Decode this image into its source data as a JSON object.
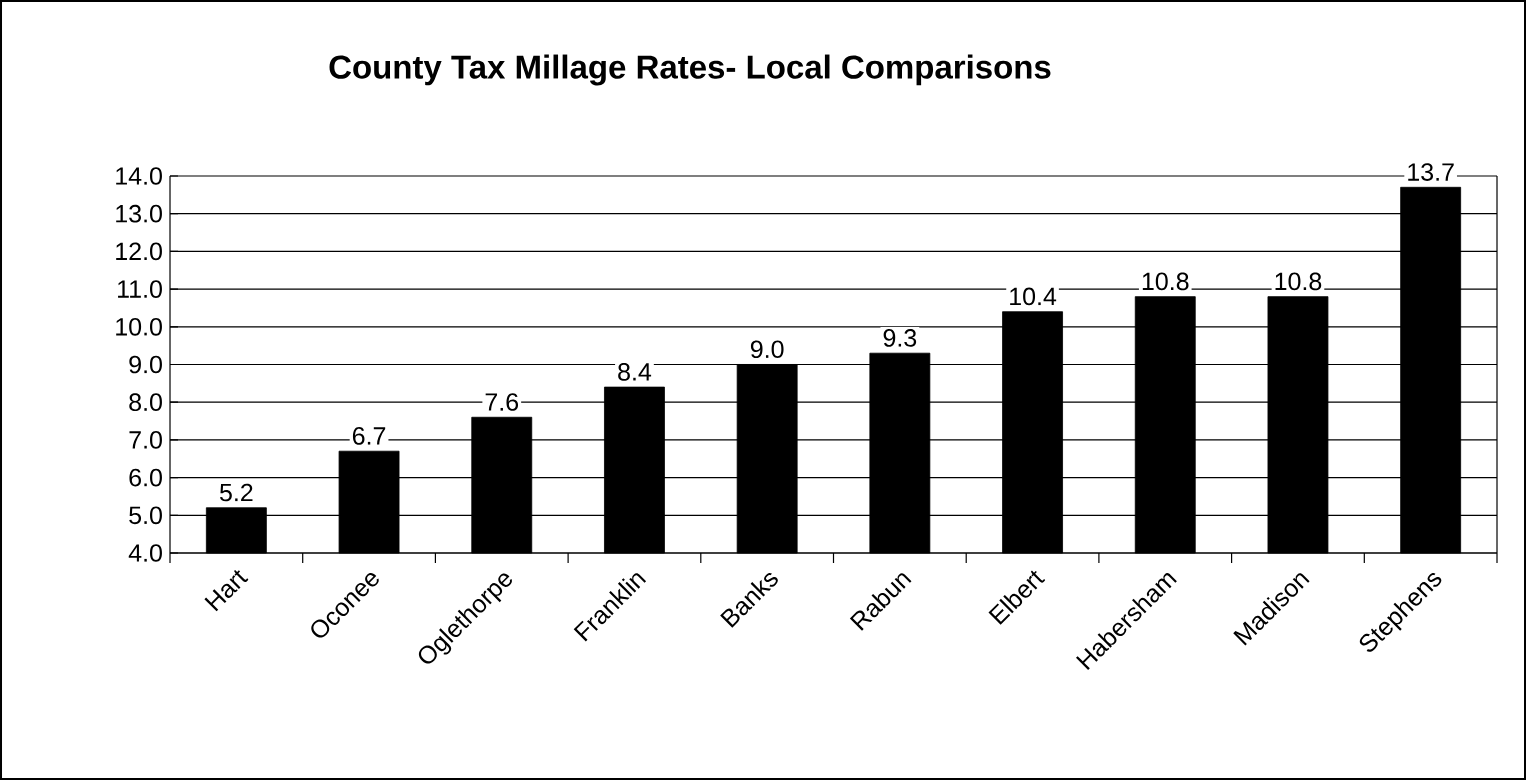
{
  "chart_data": {
    "type": "bar",
    "title": "County Tax Millage Rates- Local Comparisons",
    "categories": [
      "Hart",
      "Oconee",
      "Oglethorpe",
      "Franklin",
      "Banks",
      "Rabun",
      "Elbert",
      "Habersham",
      "Madison",
      "Stephens"
    ],
    "values": [
      5.2,
      6.7,
      7.6,
      8.4,
      9.0,
      9.3,
      10.4,
      10.8,
      10.8,
      13.7
    ],
    "value_labels": [
      "5.2",
      "6.7",
      "7.6",
      "8.4",
      "9.0",
      "9.3",
      "10.4",
      "10.8",
      "10.8",
      "13.7"
    ],
    "color": "#000000",
    "ylim": [
      4,
      14
    ],
    "yticks": [
      {
        "value": 4,
        "label": "4.0"
      },
      {
        "value": 5,
        "label": "5.0"
      },
      {
        "value": 6,
        "label": "6.0"
      },
      {
        "value": 7,
        "label": "7.0"
      },
      {
        "value": 8,
        "label": "8.0"
      },
      {
        "value": 9,
        "label": "9.0"
      },
      {
        "value": 10,
        "label": "10.0"
      },
      {
        "value": 11,
        "label": "11.0"
      },
      {
        "value": 12,
        "label": "12.0"
      },
      {
        "value": 13,
        "label": "13.0"
      },
      {
        "value": 14,
        "label": "14.0"
      }
    ],
    "grid": "y"
  }
}
